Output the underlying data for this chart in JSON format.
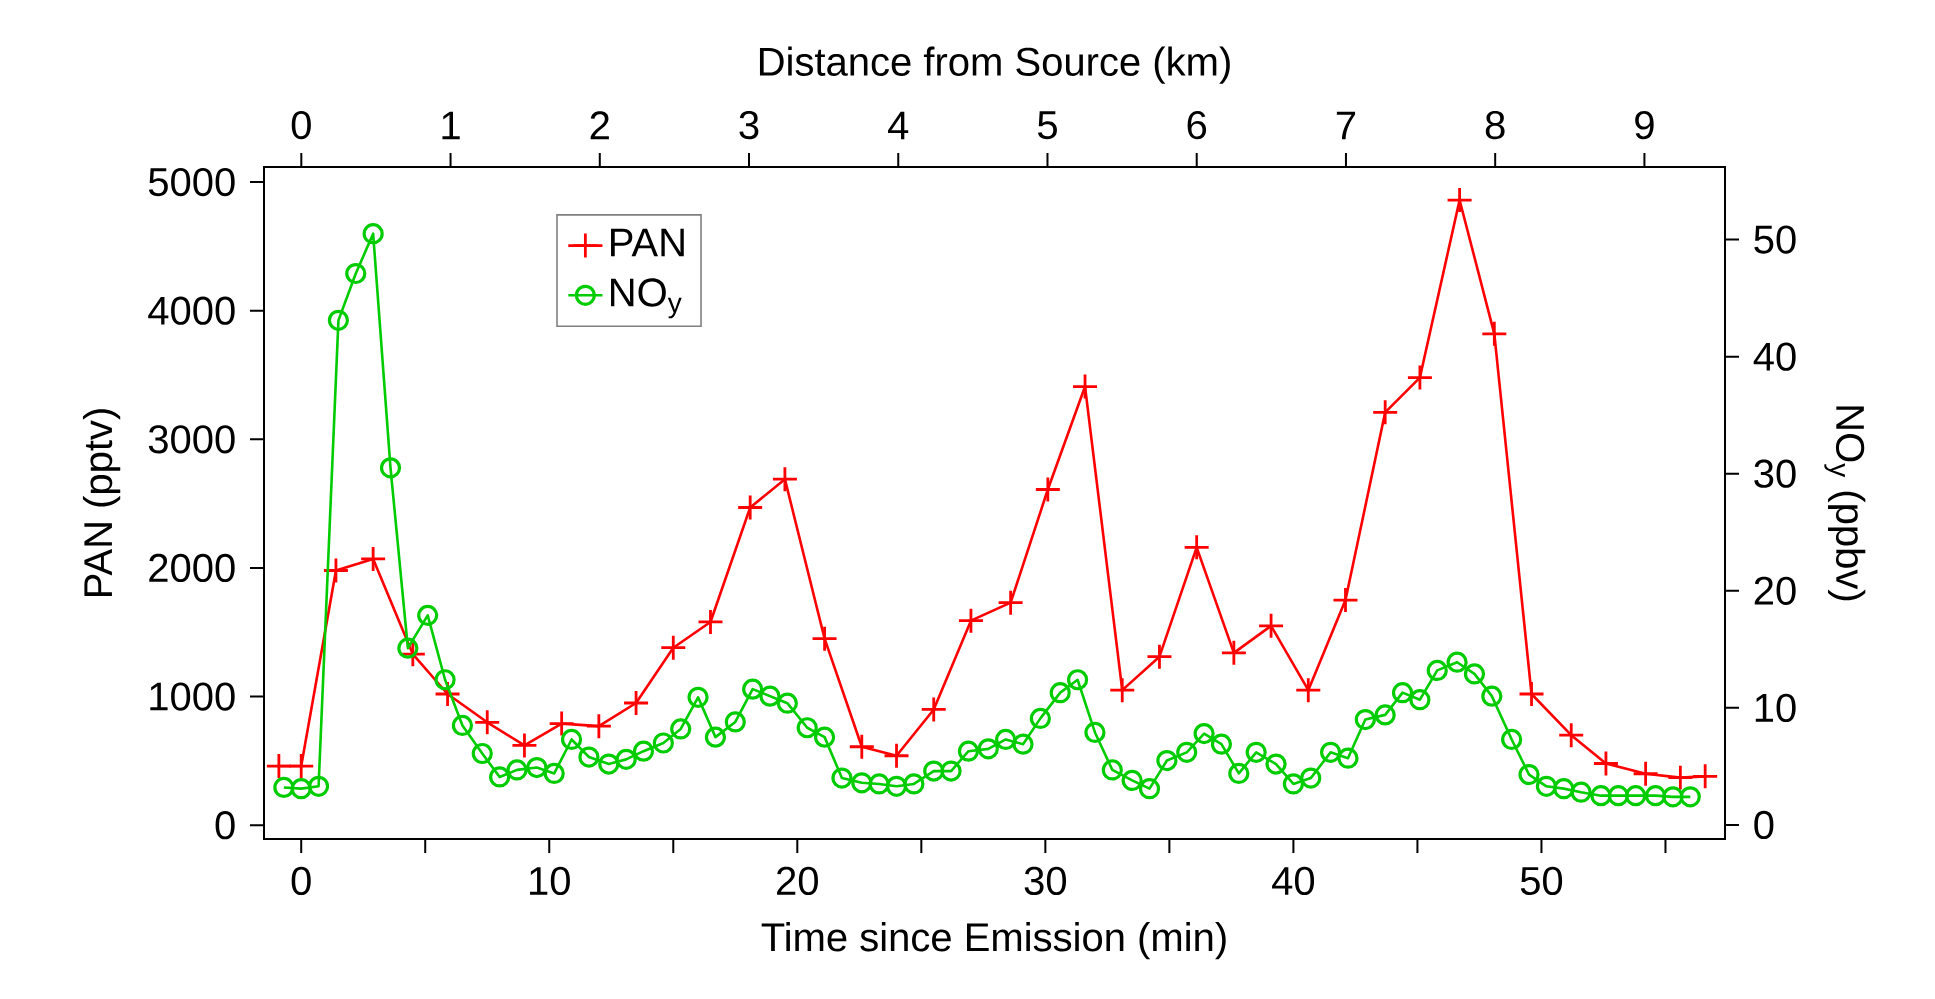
{
  "chart_data": {
    "type": "line",
    "xlabel": "Time since Emission (min)",
    "ylabel": "PAN (pptv)",
    "y2label": "NO$_{y}$ (ppbv)",
    "x2label": "Distance from Source (km)",
    "xlim": [
      -1.5,
      57.4
    ],
    "ylim": [
      -107,
      5117
    ],
    "y2lim": [
      -1.2,
      56.2
    ],
    "x2lim": [
      -0.25,
      9.54
    ],
    "xticks": [
      0,
      {
        "value": 5,
        "label": null
      },
      10,
      {
        "value": 15,
        "label": null
      },
      20,
      {
        "value": 25,
        "label": null
      },
      30,
      {
        "value": 35,
        "label": null
      },
      40,
      {
        "value": 45,
        "label": null
      },
      50,
      {
        "value": 55,
        "label": null
      }
    ],
    "yticks": [
      0,
      1000,
      2000,
      3000,
      4000,
      5000
    ],
    "y2ticks": [
      0,
      10,
      20,
      30,
      40,
      50
    ],
    "x2ticks": [
      0,
      1,
      2,
      3,
      4,
      5,
      6,
      7,
      8,
      9
    ],
    "legend": "top left",
    "series": [
      {
        "name": "PAN",
        "color": "#ff0000",
        "marker": "cross",
        "axis": "y",
        "x": [
          -0.9,
          0,
          1.4,
          2.9,
          4.5,
          5.9,
          7.5,
          9.0,
          10.5,
          12.0,
          13.5,
          15.0,
          16.5,
          18.1,
          19.5,
          21.1,
          22.6,
          24.0,
          25.5,
          27.0,
          28.6,
          30.1,
          31.6,
          33.1,
          34.6,
          36.1,
          37.6,
          39.1,
          40.6,
          42.1,
          43.7,
          45.1,
          46.7,
          48.1,
          49.6,
          51.2,
          52.6,
          54.2,
          55.6,
          56.6
        ],
        "values": [
          460,
          460,
          1980,
          2070,
          1330,
          1020,
          800,
          620,
          790,
          770,
          950,
          1380,
          1580,
          2470,
          2690,
          1450,
          610,
          540,
          900,
          1590,
          1730,
          2610,
          3410,
          1050,
          1310,
          2160,
          1340,
          1550,
          1050,
          1750,
          3210,
          3480,
          4860,
          3820,
          1020,
          700,
          480,
          400,
          370,
          380
        ]
      },
      {
        "name": "NO$_{y}$",
        "color": "#00cc00",
        "marker": "circle",
        "axis": "y2",
        "x": [
          -0.7,
          0,
          0.7,
          1.5,
          2.2,
          2.9,
          3.6,
          4.3,
          5.1,
          5.8,
          6.5,
          7.3,
          8.0,
          8.7,
          9.5,
          10.2,
          10.9,
          11.6,
          12.4,
          13.1,
          13.8,
          14.6,
          15.3,
          16.0,
          16.7,
          17.5,
          18.2,
          18.9,
          19.6,
          20.4,
          21.1,
          21.8,
          22.6,
          23.3,
          24.0,
          24.7,
          25.5,
          26.2,
          26.9,
          27.7,
          28.4,
          29.1,
          29.8,
          30.6,
          31.3,
          32.0,
          32.7,
          33.5,
          34.2,
          34.9,
          35.7,
          36.4,
          37.1,
          37.8,
          38.5,
          39.3,
          40.0,
          40.7,
          41.5,
          42.2,
          42.9,
          43.7,
          44.4,
          45.1,
          45.8,
          46.6,
          47.3,
          48.0,
          48.8,
          49.5,
          50.2,
          50.9,
          51.6,
          52.4,
          53.1,
          53.8,
          54.6,
          55.3,
          56.0
        ],
        "values": [
          3.2,
          3.1,
          3.3,
          43.1,
          47.1,
          50.5,
          30.5,
          15.1,
          17.9,
          12.4,
          8.5,
          6.1,
          4.1,
          4.7,
          4.9,
          4.4,
          7.3,
          5.8,
          5.2,
          5.6,
          6.3,
          7.0,
          8.2,
          10.9,
          7.5,
          8.8,
          11.6,
          11.0,
          10.4,
          8.3,
          7.5,
          4.0,
          3.6,
          3.5,
          3.3,
          3.5,
          4.6,
          4.6,
          6.3,
          6.5,
          7.3,
          6.9,
          9.1,
          11.3,
          12.4,
          7.9,
          4.7,
          3.8,
          3.1,
          5.5,
          6.2,
          7.8,
          6.9,
          4.4,
          6.2,
          5.2,
          3.5,
          4.0,
          6.2,
          5.7,
          9.0,
          9.4,
          11.3,
          10.7,
          13.2,
          13.9,
          12.9,
          11.0,
          7.3,
          4.3,
          3.3,
          3.1,
          2.8,
          2.5,
          2.5,
          2.5,
          2.5,
          2.4,
          2.4
        ]
      }
    ]
  }
}
